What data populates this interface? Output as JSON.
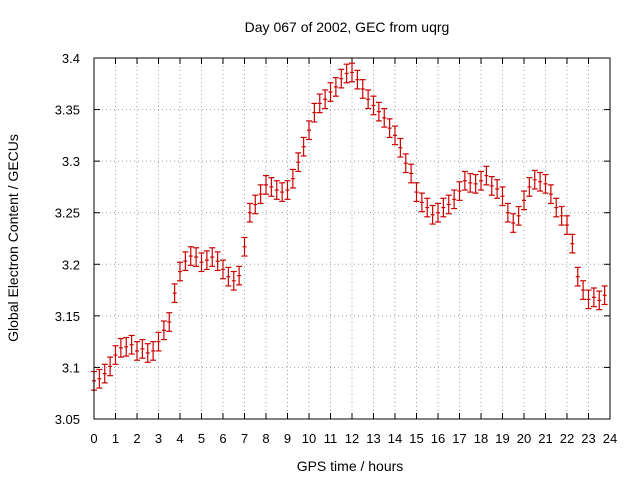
{
  "chart_data": {
    "type": "scatter",
    "title": "Day 067 of 2002, GEC from uqrg",
    "xlabel": "GPS time / hours",
    "ylabel": "Global Electron Content / GECUs",
    "xlim": [
      0,
      24
    ],
    "ylim": [
      3.05,
      3.4
    ],
    "grid": true,
    "series_color": "#cc0000",
    "x_ticks": [
      "0",
      "1",
      "2",
      "3",
      "4",
      "5",
      "6",
      "7",
      "8",
      "9",
      "10",
      "11",
      "12",
      "13",
      "14",
      "15",
      "16",
      "17",
      "18",
      "19",
      "20",
      "21",
      "22",
      "23",
      "24"
    ],
    "y_ticks": [
      "3.05",
      "3.1",
      "3.15",
      "3.2",
      "3.25",
      "3.3",
      "3.35",
      "3.4"
    ],
    "error_half_width": 0.009,
    "points": [
      [
        0.0,
        3.087
      ],
      [
        0.25,
        3.089
      ],
      [
        0.5,
        3.094
      ],
      [
        0.75,
        3.101
      ],
      [
        1.0,
        3.112
      ],
      [
        1.25,
        3.119
      ],
      [
        1.5,
        3.12
      ],
      [
        1.75,
        3.122
      ],
      [
        2.0,
        3.116
      ],
      [
        2.25,
        3.118
      ],
      [
        2.5,
        3.114
      ],
      [
        2.75,
        3.116
      ],
      [
        3.0,
        3.125
      ],
      [
        3.25,
        3.136
      ],
      [
        3.5,
        3.144
      ],
      [
        3.75,
        3.172
      ],
      [
        4.0,
        3.193
      ],
      [
        4.25,
        3.203
      ],
      [
        4.5,
        3.208
      ],
      [
        4.75,
        3.207
      ],
      [
        5.0,
        3.202
      ],
      [
        5.25,
        3.204
      ],
      [
        5.5,
        3.207
      ],
      [
        5.75,
        3.203
      ],
      [
        6.0,
        3.195
      ],
      [
        6.25,
        3.188
      ],
      [
        6.5,
        3.184
      ],
      [
        6.75,
        3.189
      ],
      [
        7.0,
        3.217
      ],
      [
        7.25,
        3.25
      ],
      [
        7.5,
        3.258
      ],
      [
        7.75,
        3.268
      ],
      [
        8.0,
        3.277
      ],
      [
        8.25,
        3.275
      ],
      [
        8.5,
        3.272
      ],
      [
        8.75,
        3.27
      ],
      [
        9.0,
        3.272
      ],
      [
        9.25,
        3.283
      ],
      [
        9.5,
        3.299
      ],
      [
        9.75,
        3.314
      ],
      [
        10.0,
        3.33
      ],
      [
        10.25,
        3.347
      ],
      [
        10.5,
        3.356
      ],
      [
        10.75,
        3.36
      ],
      [
        11.0,
        3.367
      ],
      [
        11.25,
        3.372
      ],
      [
        11.5,
        3.38
      ],
      [
        11.75,
        3.385
      ],
      [
        12.0,
        3.386
      ],
      [
        12.25,
        3.379
      ],
      [
        12.5,
        3.37
      ],
      [
        12.75,
        3.36
      ],
      [
        13.0,
        3.354
      ],
      [
        13.25,
        3.348
      ],
      [
        13.5,
        3.342
      ],
      [
        13.75,
        3.332
      ],
      [
        14.0,
        3.325
      ],
      [
        14.25,
        3.313
      ],
      [
        14.5,
        3.298
      ],
      [
        14.75,
        3.288
      ],
      [
        15.0,
        3.27
      ],
      [
        15.25,
        3.26
      ],
      [
        15.5,
        3.255
      ],
      [
        15.75,
        3.248
      ],
      [
        16.0,
        3.25
      ],
      [
        16.25,
        3.255
      ],
      [
        16.5,
        3.258
      ],
      [
        16.75,
        3.263
      ],
      [
        17.0,
        3.271
      ],
      [
        17.25,
        3.281
      ],
      [
        17.5,
        3.279
      ],
      [
        17.75,
        3.278
      ],
      [
        18.0,
        3.281
      ],
      [
        18.25,
        3.286
      ],
      [
        18.5,
        3.276
      ],
      [
        18.75,
        3.273
      ],
      [
        19.0,
        3.266
      ],
      [
        19.25,
        3.25
      ],
      [
        19.5,
        3.24
      ],
      [
        19.75,
        3.247
      ],
      [
        20.0,
        3.262
      ],
      [
        20.25,
        3.275
      ],
      [
        20.5,
        3.282
      ],
      [
        20.75,
        3.28
      ],
      [
        21.0,
        3.278
      ],
      [
        21.25,
        3.268
      ],
      [
        21.5,
        3.255
      ],
      [
        21.75,
        3.247
      ],
      [
        22.0,
        3.238
      ],
      [
        22.25,
        3.22
      ],
      [
        22.5,
        3.188
      ],
      [
        22.75,
        3.175
      ],
      [
        23.0,
        3.166
      ],
      [
        23.25,
        3.168
      ],
      [
        23.5,
        3.165
      ],
      [
        23.75,
        3.17
      ]
    ]
  }
}
